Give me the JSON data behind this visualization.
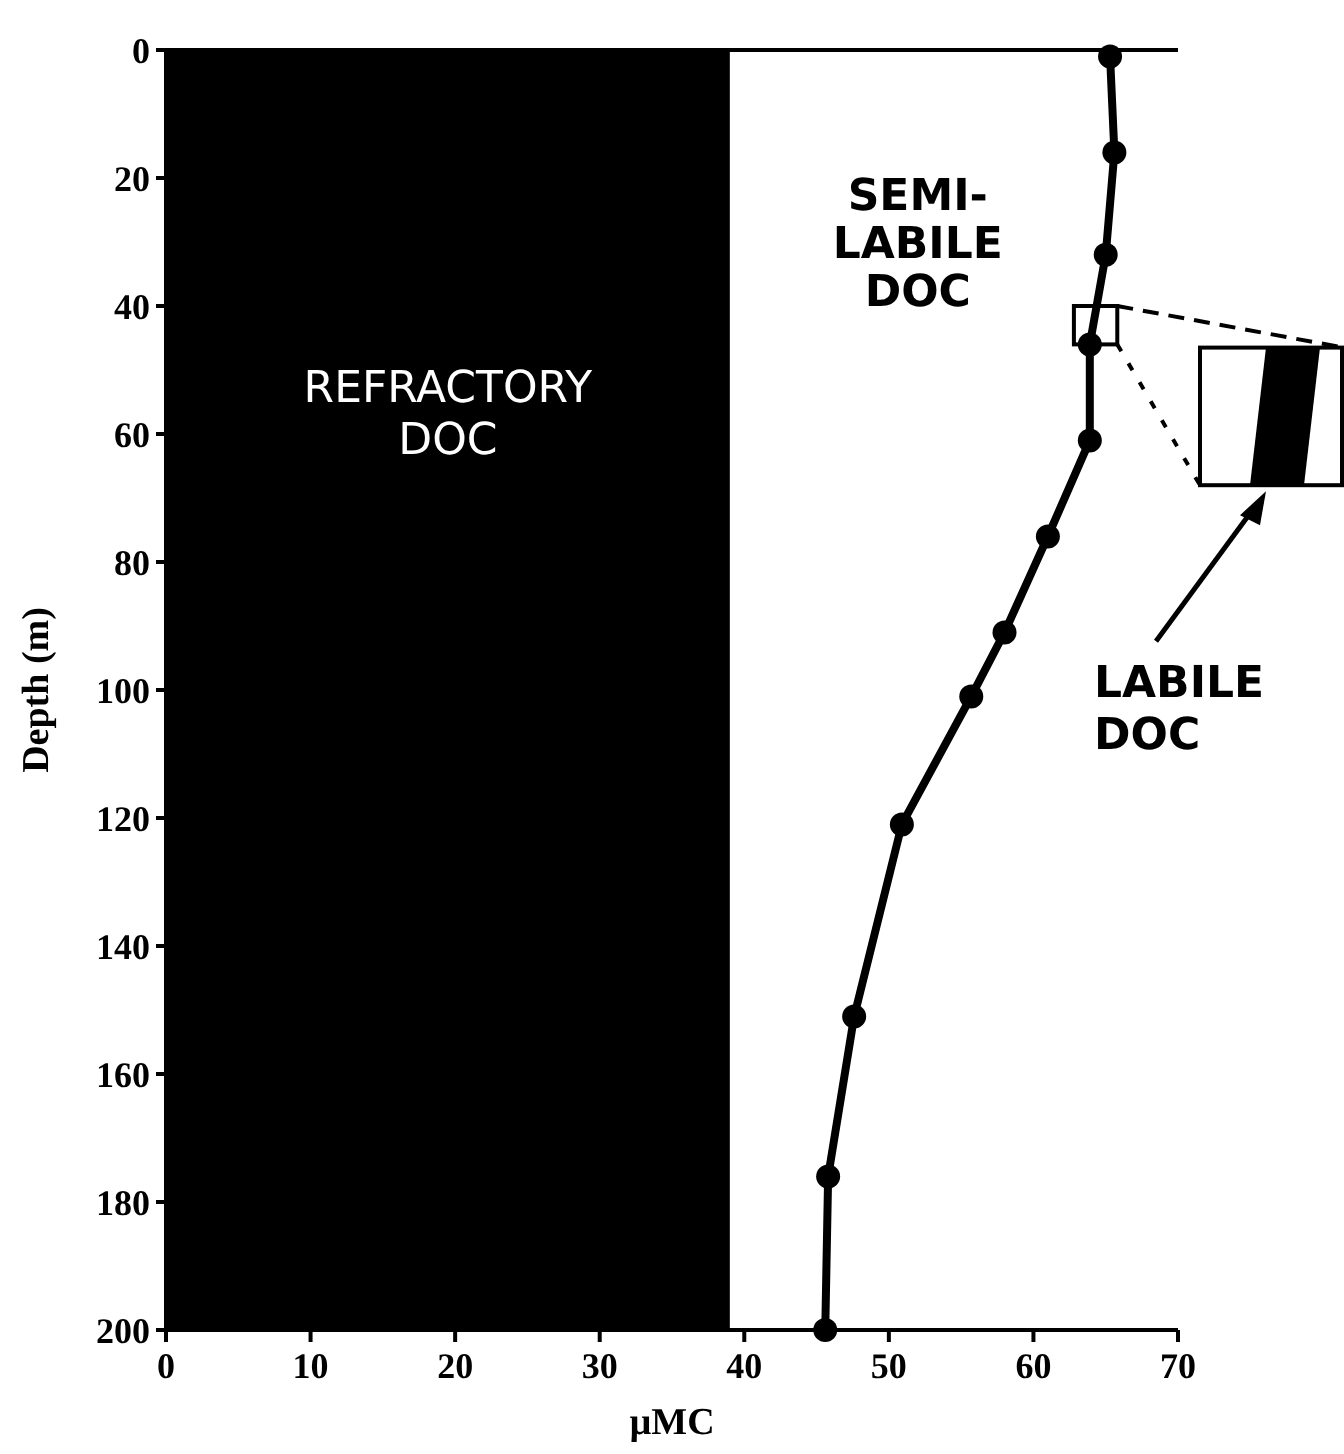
{
  "chart_data": {
    "type": "line",
    "xlabel": "µMC",
    "ylabel": "Depth (m)",
    "xlim": [
      0,
      70
    ],
    "ylim": [
      200,
      0
    ],
    "xticks": [
      0,
      10,
      20,
      30,
      40,
      50,
      60,
      70
    ],
    "yticks": [
      0,
      20,
      40,
      60,
      80,
      100,
      120,
      140,
      160,
      180,
      200
    ],
    "series": [
      {
        "color": "#000000",
        "x": [
          65.3,
          65.6,
          65.0,
          63.9,
          63.9,
          61,
          58,
          55.7,
          50.9,
          47.6,
          45.8,
          45.6
        ],
        "values": [
          1,
          16,
          32,
          46,
          61,
          76,
          91,
          101,
          121,
          151,
          176,
          200
        ]
      }
    ],
    "bands": [
      {
        "axis": "x",
        "from": 0,
        "to": 39,
        "label": "REFRACTORY DOC",
        "color": "#000000"
      }
    ],
    "annotations": [
      "SEMI-LABILE DOC",
      "LABILE DOC"
    ],
    "marker": "circle",
    "line_style": "solid",
    "grid": false
  }
}
